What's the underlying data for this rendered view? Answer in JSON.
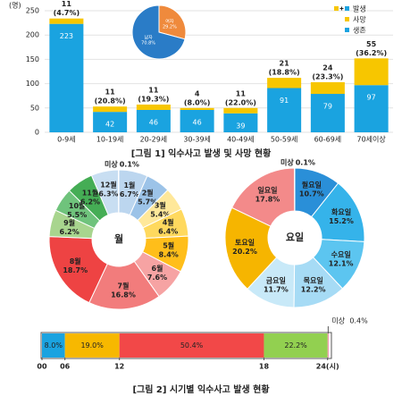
{
  "chart_data": [
    {
      "type": "stacked_bar",
      "title": "[그림 1] 익수사고 발생 및 사망 현황",
      "y_unit": "(명)",
      "categories": [
        "0-9세",
        "10-19세",
        "20-29세",
        "30-39세",
        "40-49세",
        "50-59세",
        "60-69세",
        "70세이상"
      ],
      "series": [
        {
          "name": "생존",
          "color": "#1aa3e0",
          "values": [
            223,
            42,
            46,
            46,
            39,
            91,
            79,
            97
          ]
        },
        {
          "name": "사망",
          "color": "#f7c600",
          "values": [
            11,
            11,
            11,
            4,
            11,
            21,
            24,
            55
          ],
          "rate_labels": [
            "(4.7%)",
            "(20.8%)",
            "(19.3%)",
            "(8.0%)",
            "(22.0%)",
            "(18.8%)",
            "(23.3%)",
            "(36.2%)"
          ]
        }
      ],
      "total_name": "발생",
      "ylim": [
        0,
        250
      ],
      "yticks": [
        0,
        50,
        100,
        150,
        200,
        250
      ]
    },
    {
      "type": "pie",
      "categories": [
        "여자",
        "남자"
      ],
      "values": [
        29.2,
        70.8
      ],
      "value_labels": [
        "29.2%",
        "70.8%"
      ],
      "colors": [
        "#ef8a3c",
        "#2a7cc7"
      ]
    },
    {
      "type": "donut",
      "center_label": "월",
      "categories": [
        "1월",
        "2월",
        "3월",
        "4월",
        "5월",
        "6월",
        "7월",
        "8월",
        "9월",
        "10월",
        "11월",
        "12월",
        "미상"
      ],
      "values": [
        6.7,
        5.7,
        5.4,
        6.4,
        8.4,
        7.6,
        16.8,
        18.7,
        6.2,
        5.5,
        6.2,
        6.3,
        0.1
      ],
      "value_labels": [
        "6.7%",
        "5.7%",
        "5.4%",
        "6.4%",
        "8.4%",
        "7.6%",
        "16.8%",
        "18.7%",
        "6.2%",
        "5.5%",
        "6.2%",
        "6.3%",
        "0.1%"
      ],
      "colors": [
        "#bcd6ef",
        "#9cc3e8",
        "#ffe89a",
        "#ffd95e",
        "#ffbe1a",
        "#f6a3a3",
        "#f27c7c",
        "#ee4343",
        "#a8d58e",
        "#6fc37c",
        "#45ad55",
        "#c8def2",
        "#f29ab0"
      ]
    },
    {
      "type": "donut",
      "center_label": "요일",
      "categories": [
        "월요일",
        "화요일",
        "수요일",
        "목요일",
        "금요일",
        "토요일",
        "일요일",
        "미상"
      ],
      "values": [
        10.7,
        15.2,
        12.1,
        12.2,
        11.7,
        20.2,
        17.8,
        0.1
      ],
      "value_labels": [
        "10.7%",
        "15.2%",
        "12.1%",
        "12.2%",
        "11.7%",
        "20.2%",
        "17.8%",
        "0.1%"
      ],
      "colors": [
        "#2a8fd8",
        "#35b3ea",
        "#5cc5f0",
        "#a6dbf5",
        "#c8e9f8",
        "#f6b500",
        "#f38a8a",
        "#f29ab0"
      ]
    },
    {
      "type": "stacked_hbar",
      "title": "[그림 2] 시기별 익수사고 발생 현황",
      "categories": [
        null,
        null,
        null,
        null,
        "미상"
      ],
      "values": [
        8.0,
        19.0,
        50.4,
        22.2,
        0.4
      ],
      "value_labels": [
        "8.0%",
        "19.0%",
        "50.4%",
        "22.2%",
        "0.4%"
      ],
      "colors": [
        "#1aa3e0",
        "#f7b800",
        "#f24848",
        "#92d050",
        "#f29ab0"
      ],
      "xlim": [
        0,
        100
      ],
      "xticks": [
        {
          "value": 0,
          "label": "00"
        },
        {
          "value": 8,
          "label": "06"
        },
        {
          "value": 27,
          "label": "12"
        },
        {
          "value": 77.4,
          "label": "18"
        },
        {
          "value": 99.6,
          "label": "24(시)"
        }
      ]
    }
  ]
}
